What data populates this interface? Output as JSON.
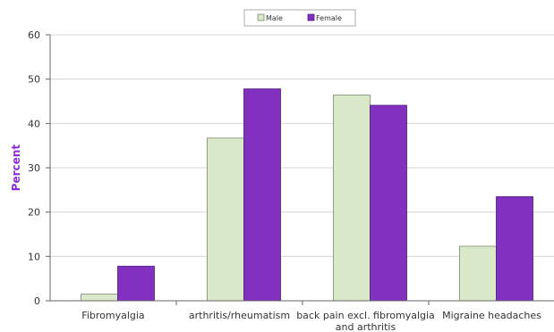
{
  "chart_data": {
    "type": "bar",
    "categories": [
      "Fibromyalgia",
      "arthritis/rheumatism",
      "back pain excl. fibromyalgia and arthritis",
      "Migraine headaches"
    ],
    "category_label_lines": [
      [
        "Fibromyalgia"
      ],
      [
        "arthritis/rheumatism"
      ],
      [
        "back pain excl. fibromyalgia",
        "and arthritis"
      ],
      [
        "Migraine headaches"
      ]
    ],
    "series": [
      {
        "name": "Male",
        "values": [
          1.5,
          36.7,
          46.4,
          12.3
        ],
        "color": "#d9e8c8",
        "stroke": "#7a8a6a"
      },
      {
        "name": "Female",
        "values": [
          7.8,
          47.8,
          44.1,
          23.5
        ],
        "color": "#8230bf",
        "stroke": "#4e1d75"
      }
    ],
    "title": "",
    "xlabel": "",
    "ylabel": "Percent",
    "ylabel_color": "#8a2be2",
    "ylim": [
      0,
      60
    ],
    "yticks": [
      0,
      10,
      20,
      30,
      40,
      50,
      60
    ],
    "grid": true,
    "legend_position": "top-center"
  }
}
